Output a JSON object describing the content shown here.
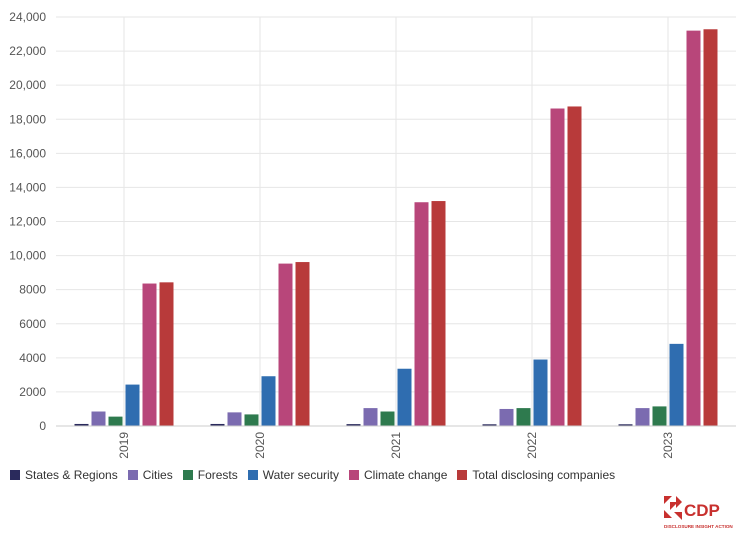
{
  "chart_data": {
    "type": "bar",
    "categories": [
      "2019",
      "2020",
      "2021",
      "2022",
      "2023"
    ],
    "series": [
      {
        "name": "States & Regions",
        "color": "#2a2a5c",
        "values": [
          120,
          120,
          110,
          100,
          100
        ]
      },
      {
        "name": "Cities",
        "color": "#7b6bb0",
        "values": [
          850,
          800,
          1050,
          1000,
          1050
        ]
      },
      {
        "name": "Forests",
        "color": "#2e7a4e",
        "values": [
          550,
          680,
          850,
          1050,
          1150
        ]
      },
      {
        "name": "Water security",
        "color": "#2f6db0",
        "values": [
          2430,
          2920,
          3360,
          3900,
          4820
        ]
      },
      {
        "name": "Climate change",
        "color": "#b8467a",
        "values": [
          8360,
          9530,
          13130,
          18630,
          23200
        ]
      },
      {
        "name": "Total disclosing companies",
        "color": "#b83a3a",
        "values": [
          8430,
          9620,
          13200,
          18750,
          23280
        ]
      }
    ],
    "ylim": [
      0,
      24000
    ],
    "yticks": [
      "0",
      "2000",
      "4000",
      "6000",
      "8000",
      "10,000",
      "12,000",
      "14,000",
      "16,000",
      "18,000",
      "20,000",
      "22,000",
      "24,000"
    ],
    "ytick_values": [
      0,
      2000,
      4000,
      6000,
      8000,
      10000,
      12000,
      14000,
      16000,
      18000,
      20000,
      22000,
      24000
    ],
    "grid": true,
    "legend_position": "bottom-left",
    "title": "",
    "xlabel": "",
    "ylabel": ""
  },
  "logo": {
    "name": "CDP",
    "tagline": "DISCLOSURE INSIGHT ACTION",
    "color": "#c8302e"
  }
}
